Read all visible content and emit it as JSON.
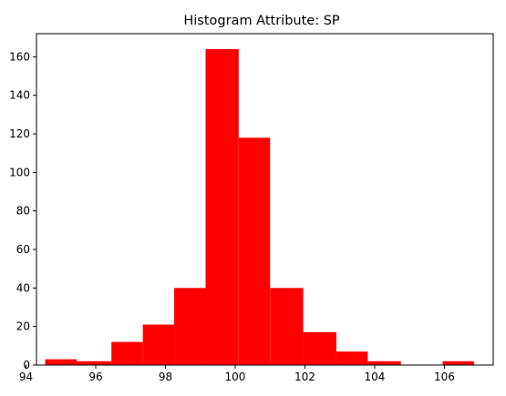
{
  "chart_data": {
    "type": "bar",
    "title": "Histogram Attribute: SP",
    "xlabel": "",
    "ylabel": "",
    "xlim": [
      94.3,
      107.4
    ],
    "ylim": [
      0,
      172
    ],
    "xticks": [
      94,
      96,
      98,
      100,
      102,
      104,
      106
    ],
    "yticks": [
      0,
      20,
      40,
      60,
      80,
      100,
      120,
      140,
      160
    ],
    "grid": false,
    "bar_color": "#ff0000",
    "bins": [
      {
        "x0": 94.55,
        "x1": 95.45,
        "value": 3
      },
      {
        "x0": 95.45,
        "x1": 96.45,
        "value": 2
      },
      {
        "x0": 96.45,
        "x1": 97.35,
        "value": 12
      },
      {
        "x0": 97.35,
        "x1": 98.25,
        "value": 21
      },
      {
        "x0": 98.25,
        "x1": 99.15,
        "value": 40
      },
      {
        "x0": 99.15,
        "x1": 100.1,
        "value": 164
      },
      {
        "x0": 100.1,
        "x1": 101.0,
        "value": 118
      },
      {
        "x0": 101.0,
        "x1": 101.95,
        "value": 40
      },
      {
        "x0": 101.95,
        "x1": 102.9,
        "value": 17
      },
      {
        "x0": 102.9,
        "x1": 103.8,
        "value": 7
      },
      {
        "x0": 103.8,
        "x1": 104.75,
        "value": 2
      },
      {
        "x0": 104.75,
        "x1": 105.95,
        "value": 0
      },
      {
        "x0": 105.95,
        "x1": 106.85,
        "value": 2
      }
    ]
  }
}
